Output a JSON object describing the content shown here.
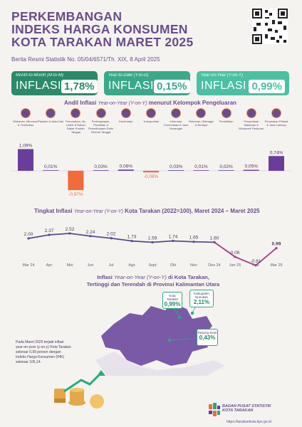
{
  "header": {
    "title_line1": "PERKEMBANGAN",
    "title_line2": "INDEKS HARGA KONSUMEN",
    "title_line3": "KOTA TARAKAN MARET 2025",
    "subtitle": "Berita Resmi Statistik No. 05/04/6571/Th. XIX, 8 April 2025"
  },
  "cards": [
    {
      "label": "Month-to-Month (M-to-M)",
      "word": "INFLASI",
      "value": "1,78%",
      "color": "#2a8a6a"
    },
    {
      "label": "Year-to-Date (Y-to-D)",
      "word": "INFLASI",
      "value": "0,15%",
      "color": "#3aa98a"
    },
    {
      "label": "Year-on-Year (Y-on-Y)",
      "word": "INFLASI",
      "value": "0,99%",
      "color": "#4cc0a2"
    }
  ],
  "section1": {
    "title_a": "Andil Inflasi ",
    "title_b": "Year-on-Year (Y-on-Y)",
    "title_c": " menurut Kelompok Pengeluaran"
  },
  "section2": {
    "title_a": "Tingkat Inflasi ",
    "title_b": "Year-on-Year (Y-on-Y)",
    "title_c": " Kota Tarakan (2022=100), Maret 2024 – Maret 2025"
  },
  "map": {
    "title_a": "Inflasi ",
    "title_b": "Year-on-Year (Y-on-Y)",
    "title_c": " di Kota Tarakan,",
    "title_line2": "Tertinggi dan Terendah di Provinsi Kalimantan Utara",
    "badges": [
      {
        "name": "Kota Tarakan",
        "value": "0,99%"
      },
      {
        "name": "Kabupaten Nunukan",
        "value": "2,11%"
      },
      {
        "name": "Tanjung Selor",
        "value": "0,43%"
      }
    ]
  },
  "note": "Pada Maret 2025 terjadi inflasi year-on-year (y-on-y) Kota Tarakan sebesar 0,99 persen dengan Indeks Harga Konsumen (IHK) sebesar 105,14.",
  "footer": {
    "org1": "BADAN PUSAT STATISTIK",
    "org2": "KOTA TARAKAN",
    "url": "https://tarakankota.bps.go.id"
  },
  "chart_data": [
    {
      "type": "bar",
      "categories": [
        "Makanan, Minuman & Tembakau",
        "Pakaian & Alas Kaki",
        "Perumahan, Air, Listrik & Bahan Bakar Rumah Tangga",
        "Perlengkapan, Peralatan & Pemeliharaan Rutin Rumah Tangga",
        "Kesehatan",
        "Transportasi",
        "Informasi, Komunikasi & Jasa Keuangan",
        "Rekreasi, Olahraga & Budaya",
        "Pendidikan",
        "Penyediaan Makanan & Minuman/ Restoran",
        "Perawatan Pribadi & Jasa Lainnya"
      ],
      "values": [
        1.09,
        0.01,
        -0.97,
        0.03,
        0.06,
        -0.08,
        0.03,
        0.01,
        0.02,
        0.05,
        0.74
      ],
      "value_labels": [
        "1,09%",
        "0,01%",
        "-0,97%",
        "0,03%",
        "0,06%",
        "-0,08%",
        "0,03%",
        "0,01%",
        "0,02%",
        "0,05%",
        "0,74%"
      ],
      "colors": {
        "positive": "#6a3d9a",
        "negative": "#f26b3a"
      }
    },
    {
      "type": "line",
      "categories": [
        "Mar 24",
        "Apr",
        "Mei",
        "Jun",
        "Jul",
        "Ags",
        "Sept",
        "Okt",
        "Nov",
        "Des 24",
        "Jan 25",
        "Feb",
        "Mar 25"
      ],
      "values": [
        2.0,
        2.37,
        2.52,
        2.24,
        2.02,
        1.73,
        1.59,
        1.74,
        1.65,
        1.6,
        0.08,
        -0.81,
        0.99
      ],
      "value_labels": [
        "2.00",
        "2.37",
        "2.52",
        "2.24",
        "2.02",
        "1.73",
        "1.59",
        "1.74",
        "1.65",
        "1.60",
        "0.08",
        "-0.81",
        "0.99"
      ],
      "colors": {
        "line1": "#5a4a8a",
        "line2": "#a03d8a"
      }
    }
  ]
}
